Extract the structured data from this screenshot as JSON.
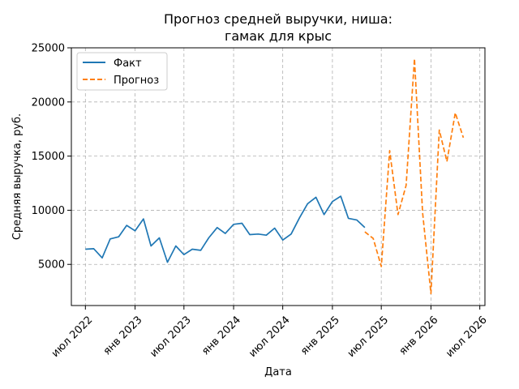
{
  "chart_data": {
    "type": "line",
    "title_lines": [
      "Прогноз средней выручки, ниша:",
      "гамак для крыс"
    ],
    "xlabel": "Дата",
    "ylabel": "Средняя выручка, руб.",
    "ylim": [
      1200,
      25000
    ],
    "xlim": [
      "2022-05-10",
      "2026-07-20"
    ],
    "grid": true,
    "legend_position": "top-left",
    "yticks": [
      5000,
      10000,
      15000,
      20000,
      25000
    ],
    "xticks": [
      {
        "date": "2022-07-01",
        "label": "июл 2022"
      },
      {
        "date": "2023-01-01",
        "label": "янв 2023"
      },
      {
        "date": "2023-07-01",
        "label": "июл 2023"
      },
      {
        "date": "2024-01-01",
        "label": "янв 2024"
      },
      {
        "date": "2024-07-01",
        "label": "июл 2024"
      },
      {
        "date": "2025-01-01",
        "label": "янв 2025"
      },
      {
        "date": "2025-07-01",
        "label": "июл 2025"
      },
      {
        "date": "2026-01-01",
        "label": "янв 2026"
      },
      {
        "date": "2026-07-01",
        "label": "июл 2026"
      }
    ],
    "series": [
      {
        "name": "Факт",
        "color": "#1f77b4",
        "dash": "solid",
        "x": [
          "2022-07-01",
          "2022-08-01",
          "2022-09-01",
          "2022-10-01",
          "2022-11-01",
          "2022-12-01",
          "2023-01-01",
          "2023-02-01",
          "2023-03-01",
          "2023-04-01",
          "2023-05-01",
          "2023-06-01",
          "2023-07-01",
          "2023-08-01",
          "2023-09-01",
          "2023-10-01",
          "2023-11-01",
          "2023-12-01",
          "2024-01-01",
          "2024-02-01",
          "2024-03-01",
          "2024-04-01",
          "2024-05-01",
          "2024-06-01",
          "2024-07-01",
          "2024-08-01",
          "2024-09-01",
          "2024-10-01",
          "2024-11-01",
          "2024-12-01",
          "2025-01-01",
          "2025-02-01",
          "2025-03-01",
          "2025-04-01",
          "2025-05-01"
        ],
        "values": [
          6400,
          6450,
          5600,
          7350,
          7550,
          8600,
          8100,
          9200,
          6700,
          7450,
          5200,
          6700,
          5900,
          6400,
          6300,
          7450,
          8400,
          7850,
          8700,
          8800,
          7750,
          7800,
          7700,
          8350,
          7250,
          7800,
          9300,
          10600,
          11200,
          9600,
          10800,
          11300,
          9250,
          9100,
          8400
        ]
      },
      {
        "name": "Прогноз",
        "color": "#ff7f0e",
        "dash": "dashed",
        "x": [
          "2025-05-01",
          "2025-06-01",
          "2025-07-01",
          "2025-08-01",
          "2025-09-01",
          "2025-10-01",
          "2025-11-01",
          "2025-12-01",
          "2026-01-01",
          "2026-02-01",
          "2026-03-01",
          "2026-04-01",
          "2026-05-01"
        ],
        "values": [
          8000,
          7400,
          4800,
          15500,
          9600,
          12300,
          24000,
          9800,
          2300,
          17400,
          14500,
          19000,
          16700
        ]
      }
    ]
  }
}
